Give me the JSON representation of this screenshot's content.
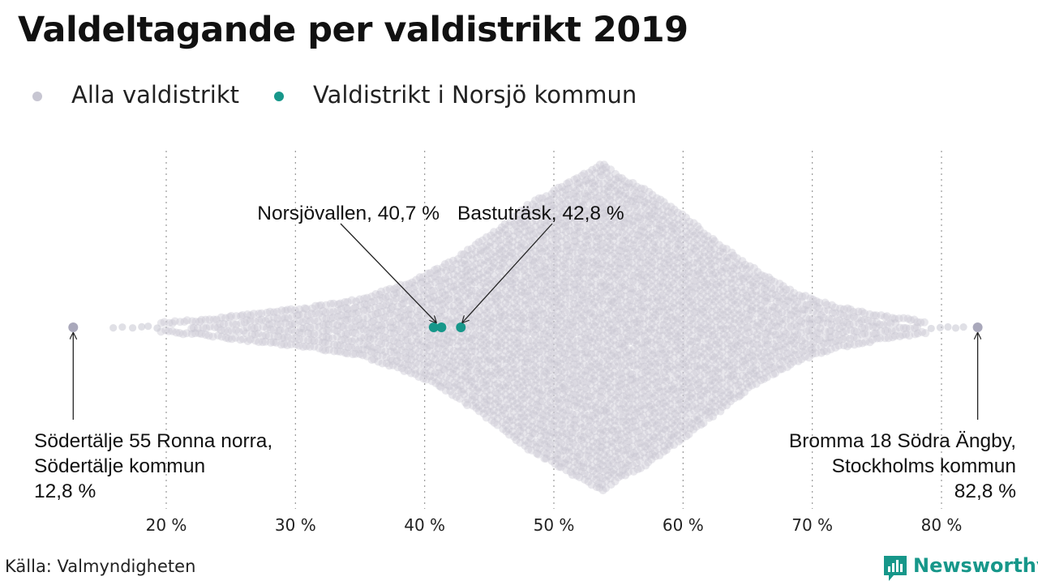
{
  "title": "Valdeltagande per valdistrikt 2019",
  "legend": [
    {
      "label": "Alla valdistrikt",
      "color": "#c7c6d2"
    },
    {
      "label": "Valdistrikt i Norsjö kommun",
      "color": "#17978a"
    }
  ],
  "source": "Källa: Valmyndigheten",
  "brand": {
    "name": "Newsworthy",
    "color": "#17978a"
  },
  "chart_data": {
    "type": "scatter",
    "subtype": "beeswarm",
    "xlim": [
      12,
      83.5
    ],
    "x_ticks": [
      20,
      30,
      40,
      50,
      60,
      70,
      80
    ],
    "x_tick_labels": [
      "20 %",
      "30 %",
      "40 %",
      "50 %",
      "60 %",
      "70 %",
      "80 %"
    ],
    "grid": "vertical dotted",
    "all_districts": {
      "color": "#c7c6d2",
      "distribution_peak": 53.8,
      "min": 12.8,
      "max": 82.8
    },
    "highlighted": [
      {
        "name": "Norsjövallen",
        "value": 40.7,
        "color": "#17978a"
      },
      {
        "name": "",
        "value": 41.3,
        "color": "#17978a"
      },
      {
        "name": "Bastuträsk",
        "value": 42.8,
        "color": "#17978a"
      }
    ],
    "annotations": [
      {
        "lines": [
          "Norsjövallen, 40,7 %"
        ],
        "value": 40.7
      },
      {
        "lines": [
          "Bastuträsk, 42,8 %"
        ],
        "value": 42.8
      },
      {
        "lines": [
          "Södertälje 55 Ronna norra,",
          "Södertälje kommun",
          "12,8 %"
        ],
        "value": 12.8
      },
      {
        "lines": [
          "Bromma 18 Södra Ängby,",
          "Stockholms kommun",
          "82,8 %"
        ],
        "value": 82.8
      }
    ]
  }
}
